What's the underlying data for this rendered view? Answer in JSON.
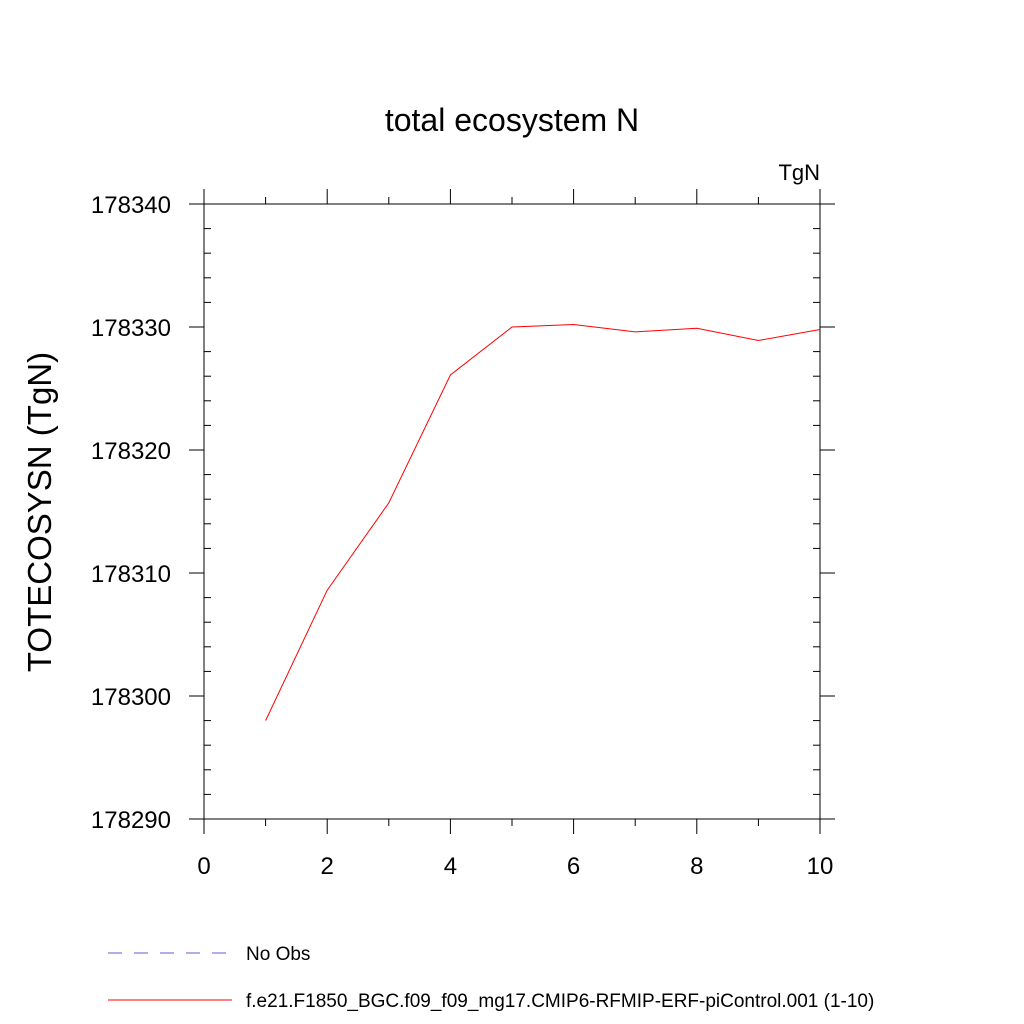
{
  "chart_data": {
    "type": "line",
    "title": "total ecosystem N",
    "units": "TgN",
    "xlabel": "",
    "ylabel": "TOTECOSYSN  (TgN)",
    "xlim": [
      0,
      10
    ],
    "ylim": [
      178290,
      178340
    ],
    "xticks": [
      0,
      2,
      4,
      6,
      8,
      10
    ],
    "yticks": [
      178290,
      178300,
      178310,
      178320,
      178330,
      178340
    ],
    "x_minor_step": 1,
    "y_minor_step": 2,
    "grid": false,
    "legend_position": "bottom",
    "series": [
      {
        "name": "f.e21.F1850_BGC.f09_f09_mg17.CMIP6-RFMIP-ERF-piControl.001 (1-10)",
        "color": "#ff0000",
        "style": "solid",
        "x": [
          1,
          2,
          3,
          4,
          5,
          6,
          7,
          8,
          9,
          10
        ],
        "y": [
          178298.0,
          178308.6,
          178315.7,
          178326.1,
          178330.0,
          178330.2,
          178329.6,
          178329.9,
          178328.9,
          178329.8
        ]
      }
    ],
    "legend": [
      {
        "label": "No Obs",
        "color": "#6a5acd",
        "style": "dashed"
      },
      {
        "label": "f.e21.F1850_BGC.f09_f09_mg17.CMIP6-RFMIP-ERF-piControl.001 (1-10)",
        "color": "#ff0000",
        "style": "solid"
      }
    ]
  }
}
